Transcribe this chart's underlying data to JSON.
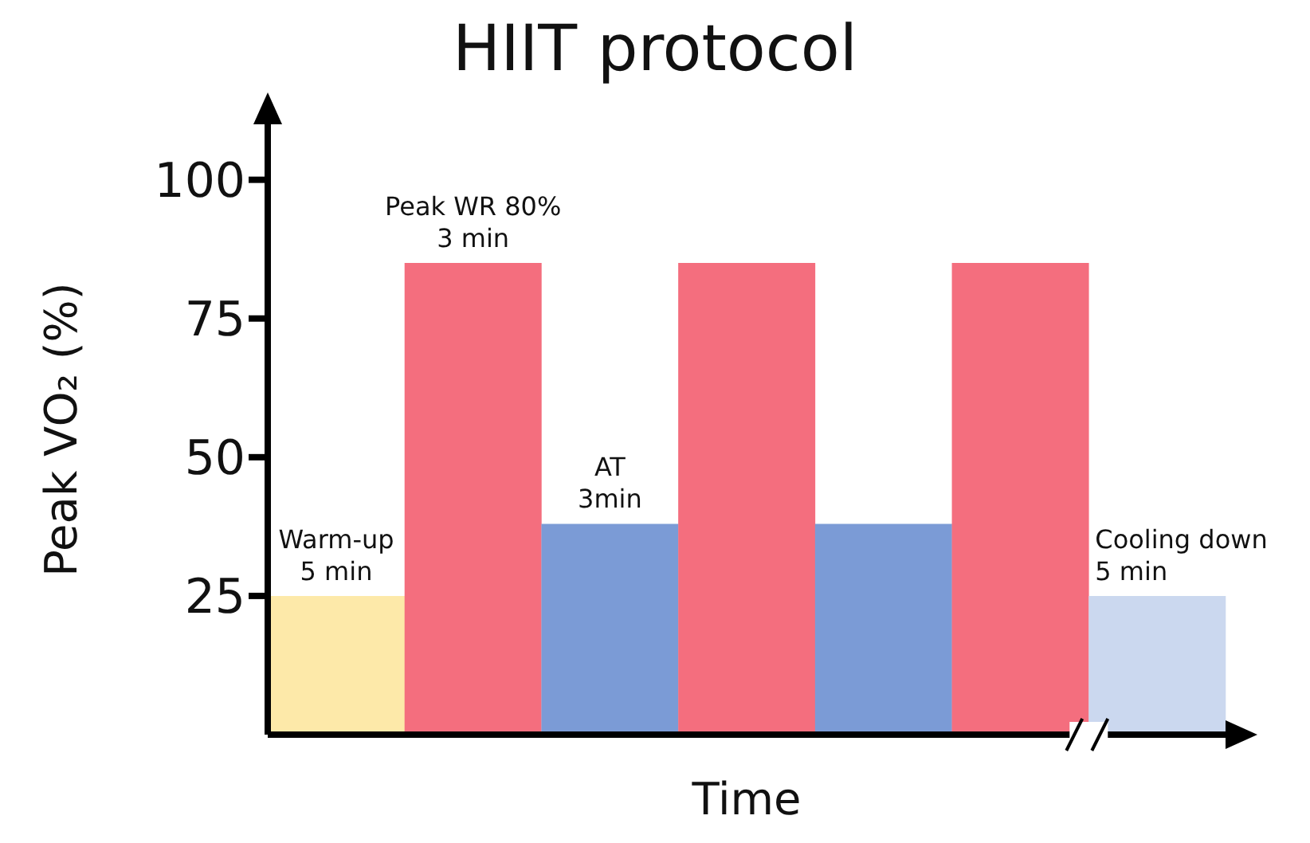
{
  "chart_data": {
    "type": "bar",
    "title": "HIIT protocol",
    "xlabel": "Time",
    "ylabel": "Peak VO₂ (%)",
    "categories": [
      null,
      null,
      null,
      null,
      null,
      null,
      null
    ],
    "values": [
      25,
      85,
      38,
      85,
      38,
      85,
      25
    ],
    "colors": [
      "#fde9a9",
      "#f46e7e",
      "#7b9bd6",
      "#f46e7e",
      "#7b9bd6",
      "#f46e7e",
      "#cbd8ef"
    ],
    "ylim": [
      0,
      110
    ],
    "yticks": [
      25,
      50,
      75,
      100
    ],
    "tick_labels": "y",
    "annotations": [
      "Warm-up\n5 min",
      "Peak WR 80%\n3 min",
      "AT\n3min",
      "Cooling down\n5 min"
    ]
  }
}
